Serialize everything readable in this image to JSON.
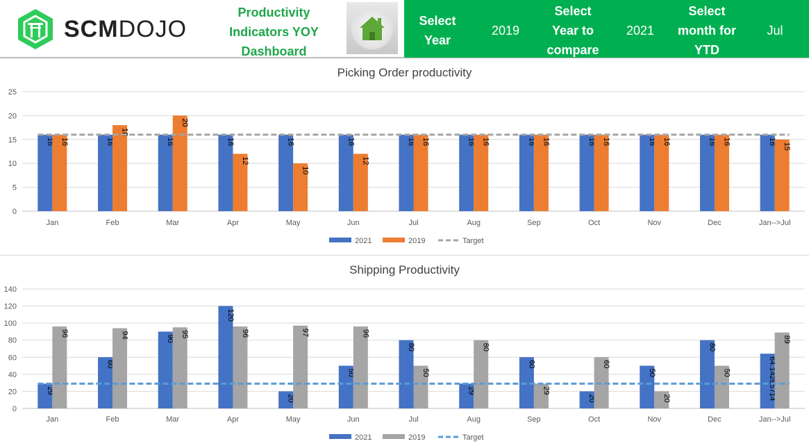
{
  "header": {
    "logo_text": "SCMDOJO",
    "title_lines": [
      "Productivity",
      "Indicators  YOY",
      "Dashboard"
    ],
    "select_year_label": [
      "Select",
      "Year"
    ],
    "select_year_value": "2019",
    "compare_label": [
      "Select",
      "Year to",
      "compare"
    ],
    "compare_value": "2021",
    "month_label": [
      "Select",
      "month for",
      "YTD"
    ],
    "month_value": "Jul",
    "home_icon": "home-icon",
    "accent_color": "#00b050"
  },
  "chart_data": [
    {
      "type": "bar",
      "title": "Picking Order productivity",
      "categories": [
        "Jan",
        "Feb",
        "Mar",
        "Apr",
        "May",
        "Jun",
        "Jul",
        "Aug",
        "Sep",
        "Oct",
        "Nov",
        "Dec",
        "Jan-->Jul"
      ],
      "series": [
        {
          "name": "2021",
          "color": "#4472c4",
          "values": [
            16,
            16,
            16,
            16,
            16,
            16,
            16,
            16,
            16,
            16,
            16,
            16,
            16
          ]
        },
        {
          "name": "2019",
          "color": "#ed7d31",
          "values": [
            16,
            18,
            20,
            12,
            10,
            12,
            16,
            16,
            16,
            16,
            16,
            16,
            15
          ]
        }
      ],
      "target": {
        "name": "Target",
        "value": 16,
        "color": "#a5a5a5"
      },
      "ylim": [
        0,
        25
      ],
      "yticks": [
        0,
        5,
        10,
        15,
        20,
        25
      ],
      "grid": true,
      "legend": "bottom"
    },
    {
      "type": "bar",
      "title": "Shipping Productivity",
      "categories": [
        "Jan",
        "Feb",
        "Mar",
        "Apr",
        "May",
        "Jun",
        "Jul",
        "Aug",
        "Sep",
        "Oct",
        "Nov",
        "Dec",
        "Jan-->Jul"
      ],
      "series": [
        {
          "name": "2021",
          "color": "#4472c4",
          "values": [
            29,
            60,
            90,
            120,
            20,
            50,
            80,
            29,
            60,
            20,
            50,
            80,
            64.14285714
          ]
        },
        {
          "name": "2019",
          "color": "#a5a5a5",
          "values": [
            96,
            94,
            95,
            96,
            97,
            96,
            50,
            80,
            29,
            60,
            20,
            50,
            89
          ]
        }
      ],
      "target": {
        "name": "Target",
        "value": 29,
        "color": "#5b9bd5"
      },
      "ylim": [
        0,
        140
      ],
      "yticks": [
        0,
        20,
        40,
        60,
        80,
        100,
        120,
        140
      ],
      "grid": true,
      "legend": "bottom"
    }
  ]
}
